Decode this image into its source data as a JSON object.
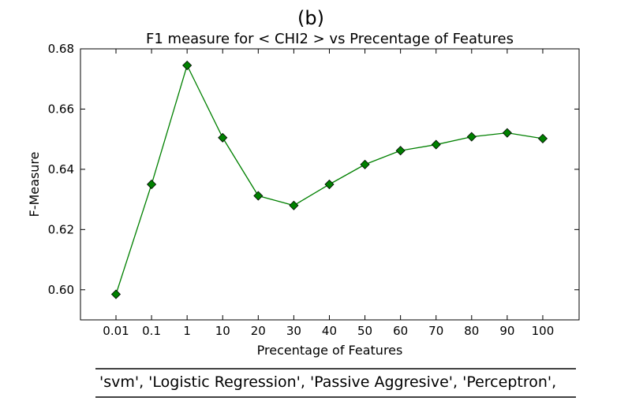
{
  "panel_label": "(b)",
  "chart_data": {
    "type": "line",
    "title": "F1 measure for < CHI2 > vs Precentage of Features",
    "xlabel": "Precentage of Features",
    "ylabel": "F-Measure",
    "categories": [
      "0.01",
      "0.1",
      "1",
      "10",
      "20",
      "30",
      "40",
      "50",
      "60",
      "70",
      "80",
      "90",
      "100"
    ],
    "series": [
      {
        "values": [
          0.5985,
          0.635,
          0.6745,
          0.6505,
          0.6312,
          0.628,
          0.635,
          0.6416,
          0.6462,
          0.6482,
          0.6508,
          0.6521,
          0.6502
        ],
        "color": "#008000",
        "marker": "diamond"
      }
    ],
    "ylim": [
      0.59,
      0.68
    ],
    "yticks": [
      "0.60",
      "0.62",
      "0.64",
      "0.66",
      "0.68"
    ],
    "ytick_values": [
      0.6,
      0.62,
      0.64,
      0.66,
      0.68
    ],
    "grid": false,
    "legend_text": "'svm', 'Logistic Regression', 'Passive Aggresive', 'Perceptron',"
  }
}
